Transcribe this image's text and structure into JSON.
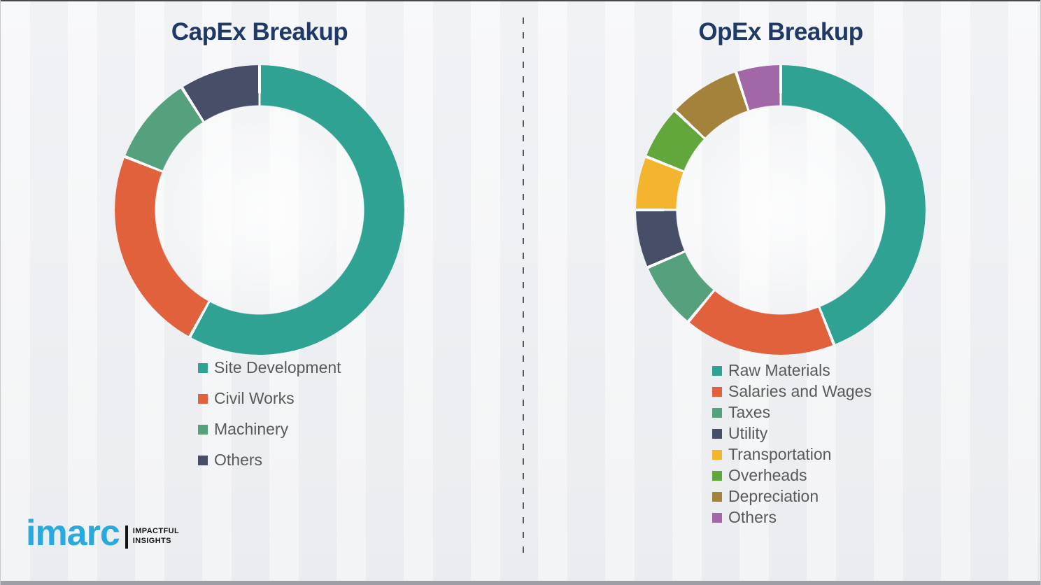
{
  "theme": {
    "background_color": "#f2f3f5",
    "title_color": "#1f3968",
    "legend_text_color": "#595959",
    "divider_color": "#55585c",
    "separator_gap_color": "#ffffff"
  },
  "chart_data": [
    {
      "type": "pie",
      "subtype": "donut",
      "title": "CapEx Breakup",
      "legend_position": "bottom-left",
      "data_labels_shown": false,
      "start_angle_deg": 0,
      "segments": [
        {
          "label": "Site Development",
          "value": 58,
          "color": "#2fa294"
        },
        {
          "label": "Civil Works",
          "value": 23,
          "color": "#e0613c"
        },
        {
          "label": "Machinery",
          "value": 10,
          "color": "#55a17e"
        },
        {
          "label": "Others",
          "value": 9,
          "color": "#464e68"
        }
      ]
    },
    {
      "type": "pie",
      "subtype": "donut",
      "title": "OpEx Breakup",
      "legend_position": "bottom-left",
      "data_labels_shown": false,
      "start_angle_deg": 0,
      "segments": [
        {
          "label": "Raw Materials",
          "value": 44,
          "color": "#2fa294"
        },
        {
          "label": "Salaries and Wages",
          "value": 17,
          "color": "#e0613c"
        },
        {
          "label": "Taxes",
          "value": 7.5,
          "color": "#55a17e"
        },
        {
          "label": "Utility",
          "value": 6.5,
          "color": "#464e68"
        },
        {
          "label": "Transportation",
          "value": 6,
          "color": "#f3b42e"
        },
        {
          "label": "Overheads",
          "value": 6,
          "color": "#61a73c"
        },
        {
          "label": "Depreciation",
          "value": 8,
          "color": "#a3833c"
        },
        {
          "label": "Others",
          "value": 5,
          "color": "#a267a7"
        }
      ]
    }
  ],
  "logo": {
    "brand": "imarc",
    "brand_color": "#29a9e0",
    "tagline_line1": "IMPACTFUL",
    "tagline_line2": "INSIGHTS"
  }
}
